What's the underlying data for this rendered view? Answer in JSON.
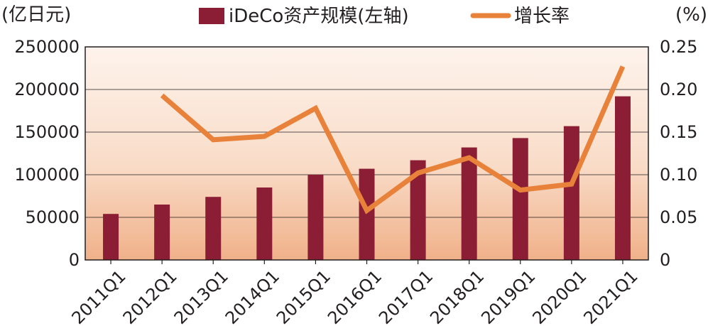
{
  "chart_data": {
    "type": "bar",
    "title": "",
    "left_unit": "(亿日元)",
    "right_unit": "(%)",
    "categories": [
      "2011Q1",
      "2012Q1",
      "2013Q1",
      "2014Q1",
      "2015Q1",
      "2016Q1",
      "2017Q1",
      "2018Q1",
      "2019Q1",
      "2020Q1",
      "2021Q1"
    ],
    "series": [
      {
        "name": "iDeCo资产规模(左轴)",
        "type": "bar",
        "axis": "left",
        "color": "#8b1e34",
        "values": [
          54000,
          65000,
          74000,
          85000,
          100000,
          107000,
          117000,
          132000,
          143000,
          157000,
          192000
        ]
      },
      {
        "name": "增长率",
        "type": "line",
        "axis": "right",
        "color": "#e8823a",
        "values": [
          null,
          0.193,
          0.141,
          0.145,
          0.178,
          0.058,
          0.102,
          0.12,
          0.082,
          0.089,
          0.227
        ]
      }
    ],
    "y_left": {
      "lim": [
        0,
        250000
      ],
      "ticks": [
        "0",
        "50000",
        "100000",
        "150000",
        "200000",
        "250000"
      ]
    },
    "y_right": {
      "lim": [
        0,
        0.25
      ],
      "ticks": [
        "0",
        "0.05",
        "0.10",
        "0.15",
        "0.20",
        "0.25"
      ]
    },
    "grid": true,
    "legend": "top",
    "background_gradient": [
      "#fdf3ec",
      "#f0b189"
    ]
  }
}
